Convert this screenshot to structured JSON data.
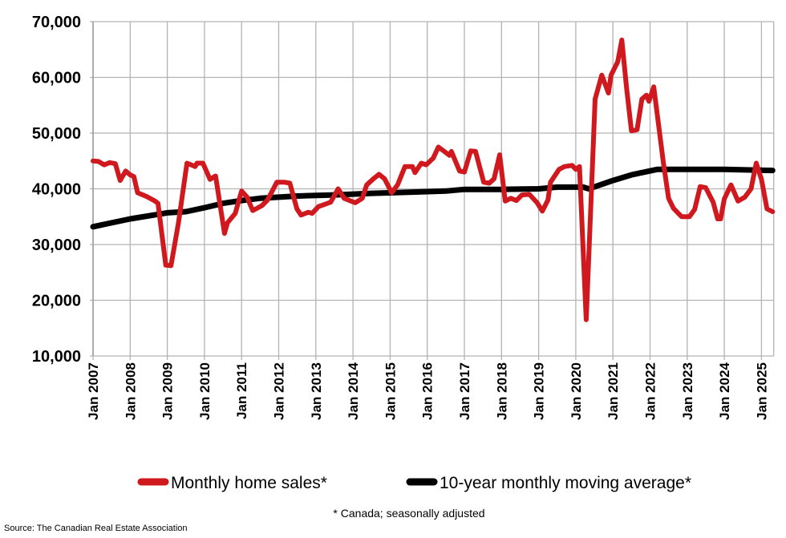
{
  "chart_data": {
    "type": "line",
    "title": "",
    "xlabel": "",
    "ylabel": "",
    "ylim": [
      10000,
      70000
    ],
    "xlim": [
      2007,
      2025.33
    ],
    "yticks": [
      10000,
      20000,
      30000,
      40000,
      50000,
      60000,
      70000
    ],
    "ytick_labels": [
      "10,000",
      "20,000",
      "30,000",
      "40,000",
      "50,000",
      "60,000",
      "70,000"
    ],
    "xticks": [
      2007,
      2008,
      2009,
      2010,
      2011,
      2012,
      2013,
      2014,
      2015,
      2016,
      2017,
      2018,
      2019,
      2020,
      2021,
      2022,
      2023,
      2024,
      2025
    ],
    "xtick_labels": [
      "Jan 2007",
      "Jan 2008",
      "Jan 2009",
      "Jan 2010",
      "Jan 2011",
      "Jan 2012",
      "Jan 2013",
      "Jan 2014",
      "Jan 2015",
      "Jan 2016",
      "Jan 2017",
      "Jan 2018",
      "Jan 2019",
      "Jan 2020",
      "Jan 2021",
      "Jan 2022",
      "Jan 2023",
      "Jan 2024",
      "Jan 2025"
    ],
    "grid": true,
    "legend_position": "bottom",
    "series": [
      {
        "name": "Monthly home sales*",
        "color": "#d0191e",
        "points": [
          [
            2007.0,
            45000
          ],
          [
            2007.15,
            44900
          ],
          [
            2007.3,
            44300
          ],
          [
            2007.45,
            44700
          ],
          [
            2007.6,
            44500
          ],
          [
            2007.73,
            41500
          ],
          [
            2007.88,
            43200
          ],
          [
            2008.0,
            42500
          ],
          [
            2008.1,
            42200
          ],
          [
            2008.2,
            39300
          ],
          [
            2008.45,
            38600
          ],
          [
            2008.67,
            37800
          ],
          [
            2008.75,
            37400
          ],
          [
            2008.96,
            26300
          ],
          [
            2009.1,
            26200
          ],
          [
            2009.3,
            33900
          ],
          [
            2009.53,
            44600
          ],
          [
            2009.68,
            44200
          ],
          [
            2009.75,
            44000
          ],
          [
            2009.8,
            44600
          ],
          [
            2009.96,
            44600
          ],
          [
            2010.15,
            41700
          ],
          [
            2010.3,
            42300
          ],
          [
            2010.54,
            32000
          ],
          [
            2010.62,
            33900
          ],
          [
            2010.83,
            35600
          ],
          [
            2011.0,
            39600
          ],
          [
            2011.15,
            38500
          ],
          [
            2011.3,
            36100
          ],
          [
            2011.55,
            37000
          ],
          [
            2011.7,
            38000
          ],
          [
            2011.95,
            41200
          ],
          [
            2012.15,
            41200
          ],
          [
            2012.3,
            41000
          ],
          [
            2012.49,
            36400
          ],
          [
            2012.6,
            35300
          ],
          [
            2012.8,
            35800
          ],
          [
            2012.9,
            35600
          ],
          [
            2013.07,
            36800
          ],
          [
            2013.4,
            37600
          ],
          [
            2013.6,
            40000
          ],
          [
            2013.76,
            38300
          ],
          [
            2014.06,
            37500
          ],
          [
            2014.25,
            38300
          ],
          [
            2014.37,
            40700
          ],
          [
            2014.55,
            41800
          ],
          [
            2014.7,
            42600
          ],
          [
            2014.85,
            41800
          ],
          [
            2015.04,
            39300
          ],
          [
            2015.2,
            40700
          ],
          [
            2015.4,
            44000
          ],
          [
            2015.6,
            44000
          ],
          [
            2015.67,
            42900
          ],
          [
            2015.84,
            44600
          ],
          [
            2015.97,
            44300
          ],
          [
            2016.16,
            45500
          ],
          [
            2016.3,
            47500
          ],
          [
            2016.46,
            46700
          ],
          [
            2016.6,
            46000
          ],
          [
            2016.65,
            46700
          ],
          [
            2016.87,
            43200
          ],
          [
            2017.0,
            43000
          ],
          [
            2017.17,
            46800
          ],
          [
            2017.3,
            46700
          ],
          [
            2017.52,
            41200
          ],
          [
            2017.67,
            41000
          ],
          [
            2017.8,
            41800
          ],
          [
            2017.95,
            46100
          ],
          [
            2018.1,
            37800
          ],
          [
            2018.25,
            38300
          ],
          [
            2018.4,
            37900
          ],
          [
            2018.55,
            38900
          ],
          [
            2018.75,
            39000
          ],
          [
            2018.96,
            37500
          ],
          [
            2019.1,
            36000
          ],
          [
            2019.25,
            38000
          ],
          [
            2019.32,
            41200
          ],
          [
            2019.55,
            43500
          ],
          [
            2019.7,
            44000
          ],
          [
            2019.9,
            44200
          ],
          [
            2020.0,
            43500
          ],
          [
            2020.1,
            44000
          ],
          [
            2020.28,
            16500
          ],
          [
            2020.4,
            36000
          ],
          [
            2020.52,
            56100
          ],
          [
            2020.7,
            60400
          ],
          [
            2020.88,
            57200
          ],
          [
            2020.95,
            60400
          ],
          [
            2021.13,
            62800
          ],
          [
            2021.24,
            66700
          ],
          [
            2021.37,
            58000
          ],
          [
            2021.5,
            50400
          ],
          [
            2021.65,
            50600
          ],
          [
            2021.78,
            56100
          ],
          [
            2021.9,
            56800
          ],
          [
            2021.97,
            55700
          ],
          [
            2022.1,
            58300
          ],
          [
            2022.36,
            44600
          ],
          [
            2022.5,
            38300
          ],
          [
            2022.63,
            36500
          ],
          [
            2022.85,
            35000
          ],
          [
            2023.06,
            35000
          ],
          [
            2023.2,
            36300
          ],
          [
            2023.35,
            40400
          ],
          [
            2023.5,
            40200
          ],
          [
            2023.7,
            37600
          ],
          [
            2023.82,
            34600
          ],
          [
            2023.9,
            34600
          ],
          [
            2024.0,
            38200
          ],
          [
            2024.18,
            40700
          ],
          [
            2024.37,
            37800
          ],
          [
            2024.55,
            38500
          ],
          [
            2024.72,
            40000
          ],
          [
            2024.86,
            44600
          ],
          [
            2025.0,
            41700
          ],
          [
            2025.15,
            36400
          ],
          [
            2025.3,
            35900
          ]
        ]
      },
      {
        "name": "10-year monthly moving average*",
        "color": "#000000",
        "points": [
          [
            2007.0,
            33200
          ],
          [
            2008.0,
            34600
          ],
          [
            2009.0,
            35700
          ],
          [
            2009.5,
            35900
          ],
          [
            2010.0,
            36600
          ],
          [
            2010.5,
            37400
          ],
          [
            2011.0,
            37900
          ],
          [
            2011.5,
            38300
          ],
          [
            2012.5,
            38700
          ],
          [
            2013.5,
            38900
          ],
          [
            2014.5,
            39200
          ],
          [
            2015.5,
            39400
          ],
          [
            2016.5,
            39600
          ],
          [
            2017.0,
            39900
          ],
          [
            2018.0,
            39900
          ],
          [
            2019.0,
            40000
          ],
          [
            2019.5,
            40300
          ],
          [
            2020.2,
            40300
          ],
          [
            2020.35,
            40000
          ],
          [
            2021.0,
            41500
          ],
          [
            2021.5,
            42500
          ],
          [
            2022.2,
            43500
          ],
          [
            2023.0,
            43500
          ],
          [
            2024.0,
            43500
          ],
          [
            2025.3,
            43300
          ]
        ]
      }
    ],
    "footnote": "* Canada; seasonally adjusted",
    "source": "Source: The Canadian Real Estate Association"
  }
}
